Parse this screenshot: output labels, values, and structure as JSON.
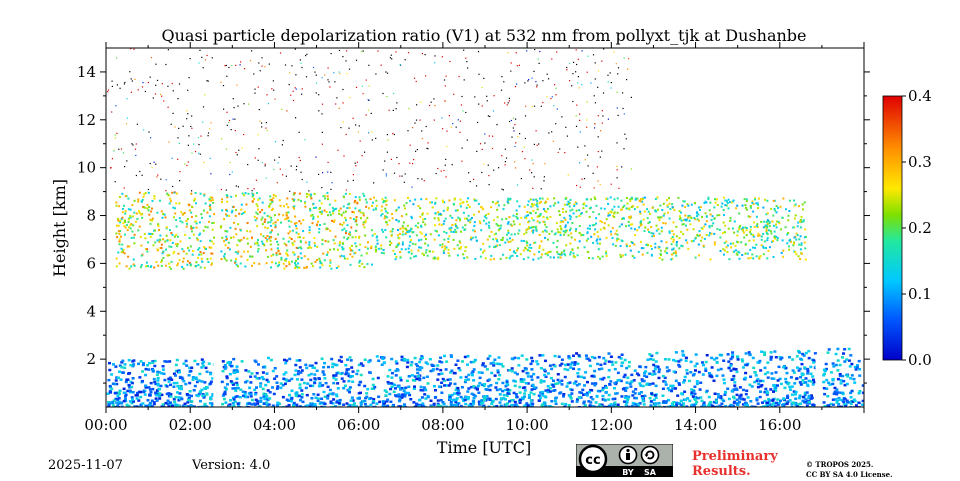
{
  "chart_data": {
    "type": "heatmap",
    "title": "Quasi particle depolarization ratio (V1) at 532 nm from pollyxt_tjk at Dushanbe",
    "xlabel": "Time [UTC]",
    "ylabel": "Height [km]",
    "x_range_hours": [
      0,
      18
    ],
    "y_range_km": [
      0,
      15
    ],
    "x_ticks": [
      {
        "value": 0,
        "label": "00:00"
      },
      {
        "value": 2,
        "label": "02:00"
      },
      {
        "value": 4,
        "label": "04:00"
      },
      {
        "value": 6,
        "label": "06:00"
      },
      {
        "value": 8,
        "label": "08:00"
      },
      {
        "value": 10,
        "label": "10:00"
      },
      {
        "value": 12,
        "label": "12:00"
      },
      {
        "value": 14,
        "label": "14:00"
      },
      {
        "value": 16,
        "label": "16:00"
      }
    ],
    "y_ticks": [
      {
        "value": 2,
        "label": "2"
      },
      {
        "value": 4,
        "label": "4"
      },
      {
        "value": 6,
        "label": "6"
      },
      {
        "value": 8,
        "label": "8"
      },
      {
        "value": 10,
        "label": "10"
      },
      {
        "value": 12,
        "label": "12"
      },
      {
        "value": 14,
        "label": "14"
      }
    ],
    "colorbar": {
      "min": 0.0,
      "max": 0.4,
      "ticks": [
        {
          "value": 0.0,
          "label": "0.0"
        },
        {
          "value": 0.1,
          "label": "0.1"
        },
        {
          "value": 0.2,
          "label": "0.2"
        },
        {
          "value": 0.3,
          "label": "0.3"
        },
        {
          "value": 0.4,
          "label": "0.4"
        }
      ]
    },
    "data_gaps_hours": [
      [
        2.55,
        2.7
      ],
      [
        16.85,
        17.0
      ]
    ],
    "features": [
      {
        "name": "boundary-layer",
        "h_start": 0.0,
        "h_end": 17.95,
        "height_bottom_km": 0.0,
        "height_top_km_start": 2.0,
        "height_top_km_end": 2.5,
        "value_range": [
          0.02,
          0.16
        ]
      },
      {
        "name": "lofted-dust-layer-west",
        "h_start": 0.2,
        "h_end": 6.3,
        "height_bottom_km": 5.8,
        "height_top_km": 9.0,
        "value_range": [
          0.12,
          0.34
        ]
      },
      {
        "name": "lofted-dust-layer-east",
        "h_start": 6.3,
        "h_end": 16.6,
        "height_bottom_km": 6.2,
        "height_top_km": 8.8,
        "value_range": [
          0.1,
          0.3
        ]
      }
    ]
  },
  "footer": {
    "date": "2025-11-07",
    "version": "Version: 4.0",
    "preliminary_line1": "Preliminary",
    "preliminary_line2": "Results.",
    "copyright_line1": "© TROPOS 2025.",
    "copyright_line2": "CC BY SA 4.0 License.",
    "cc_badge": {
      "by": "BY",
      "sa": "SA"
    }
  },
  "colors": {
    "preliminary": "#e8302c",
    "frame": "#000000",
    "background": "#ffffff"
  }
}
